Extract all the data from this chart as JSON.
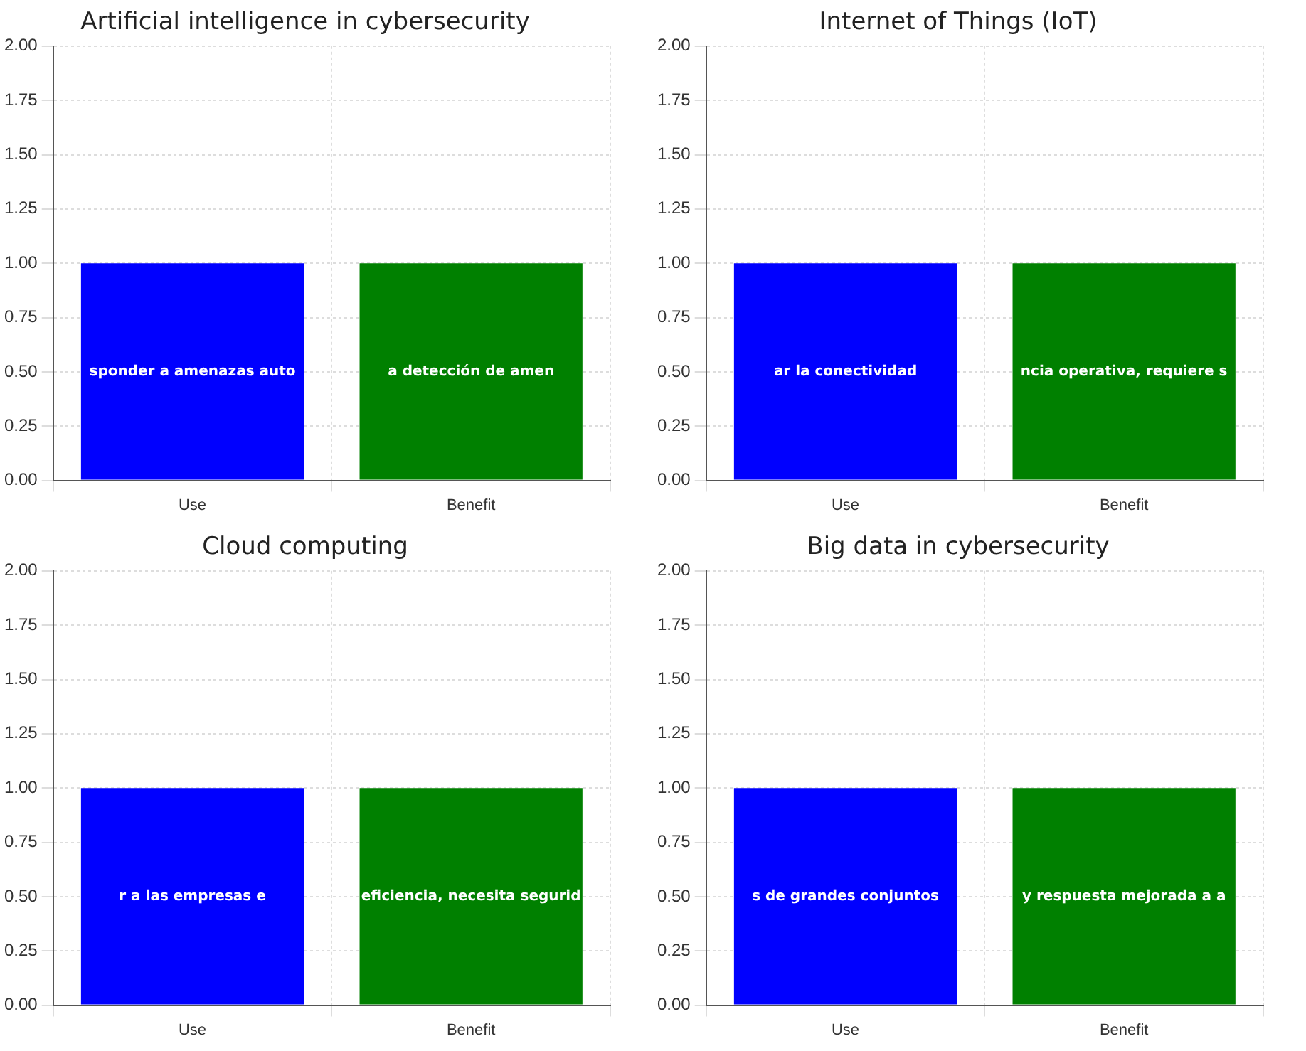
{
  "chart_data": [
    {
      "type": "bar",
      "title": "Artificial intelligence in cybersecurity",
      "categories": [
        "Use",
        "Benefit"
      ],
      "values": [
        1,
        1
      ],
      "colors": [
        "#0000ff",
        "#008000"
      ],
      "ylim": [
        0,
        2
      ],
      "yticks": [
        {
          "value": 0,
          "label": "0.00"
        },
        {
          "value": 0.25,
          "label": "0.25"
        },
        {
          "value": 0.5,
          "label": "0.50"
        },
        {
          "value": 0.75,
          "label": "0.75"
        },
        {
          "value": 1,
          "label": "1.00"
        },
        {
          "value": 1.25,
          "label": "1.25"
        },
        {
          "value": 1.5,
          "label": "1.50"
        },
        {
          "value": 1.75,
          "label": "1.75"
        },
        {
          "value": 2,
          "label": "2.00"
        }
      ],
      "grid": true,
      "legend": false,
      "annotations": [
        "sponder a amenazas auto",
        "a detección de amen"
      ]
    },
    {
      "type": "bar",
      "title": "Internet of Things (IoT)",
      "categories": [
        "Use",
        "Benefit"
      ],
      "values": [
        1,
        1
      ],
      "colors": [
        "#0000ff",
        "#008000"
      ],
      "ylim": [
        0,
        2
      ],
      "yticks": [
        {
          "value": 0,
          "label": "0.00"
        },
        {
          "value": 0.25,
          "label": "0.25"
        },
        {
          "value": 0.5,
          "label": "0.50"
        },
        {
          "value": 0.75,
          "label": "0.75"
        },
        {
          "value": 1,
          "label": "1.00"
        },
        {
          "value": 1.25,
          "label": "1.25"
        },
        {
          "value": 1.5,
          "label": "1.50"
        },
        {
          "value": 1.75,
          "label": "1.75"
        },
        {
          "value": 2,
          "label": "2.00"
        }
      ],
      "grid": true,
      "legend": false,
      "annotations": [
        "ar la conectividad",
        "ncia operativa, requiere s"
      ]
    },
    {
      "type": "bar",
      "title": "Cloud computing",
      "categories": [
        "Use",
        "Benefit"
      ],
      "values": [
        1,
        1
      ],
      "colors": [
        "#0000ff",
        "#008000"
      ],
      "ylim": [
        0,
        2
      ],
      "yticks": [
        {
          "value": 0,
          "label": "0.00"
        },
        {
          "value": 0.25,
          "label": "0.25"
        },
        {
          "value": 0.5,
          "label": "0.50"
        },
        {
          "value": 0.75,
          "label": "0.75"
        },
        {
          "value": 1,
          "label": "1.00"
        },
        {
          "value": 1.25,
          "label": "1.25"
        },
        {
          "value": 1.5,
          "label": "1.50"
        },
        {
          "value": 1.75,
          "label": "1.75"
        },
        {
          "value": 2,
          "label": "2.00"
        }
      ],
      "grid": true,
      "legend": false,
      "annotations": [
        "r a las empresas e",
        "eficiencia, necesita segurid"
      ]
    },
    {
      "type": "bar",
      "title": "Big data in cybersecurity",
      "categories": [
        "Use",
        "Benefit"
      ],
      "values": [
        1,
        1
      ],
      "colors": [
        "#0000ff",
        "#008000"
      ],
      "ylim": [
        0,
        2
      ],
      "yticks": [
        {
          "value": 0,
          "label": "0.00"
        },
        {
          "value": 0.25,
          "label": "0.25"
        },
        {
          "value": 0.5,
          "label": "0.50"
        },
        {
          "value": 0.75,
          "label": "0.75"
        },
        {
          "value": 1,
          "label": "1.00"
        },
        {
          "value": 1.25,
          "label": "1.25"
        },
        {
          "value": 1.5,
          "label": "1.50"
        },
        {
          "value": 1.75,
          "label": "1.75"
        },
        {
          "value": 2,
          "label": "2.00"
        }
      ],
      "grid": true,
      "legend": false,
      "annotations": [
        "s de grandes conjuntos",
        "y respuesta mejorada a a"
      ]
    }
  ]
}
